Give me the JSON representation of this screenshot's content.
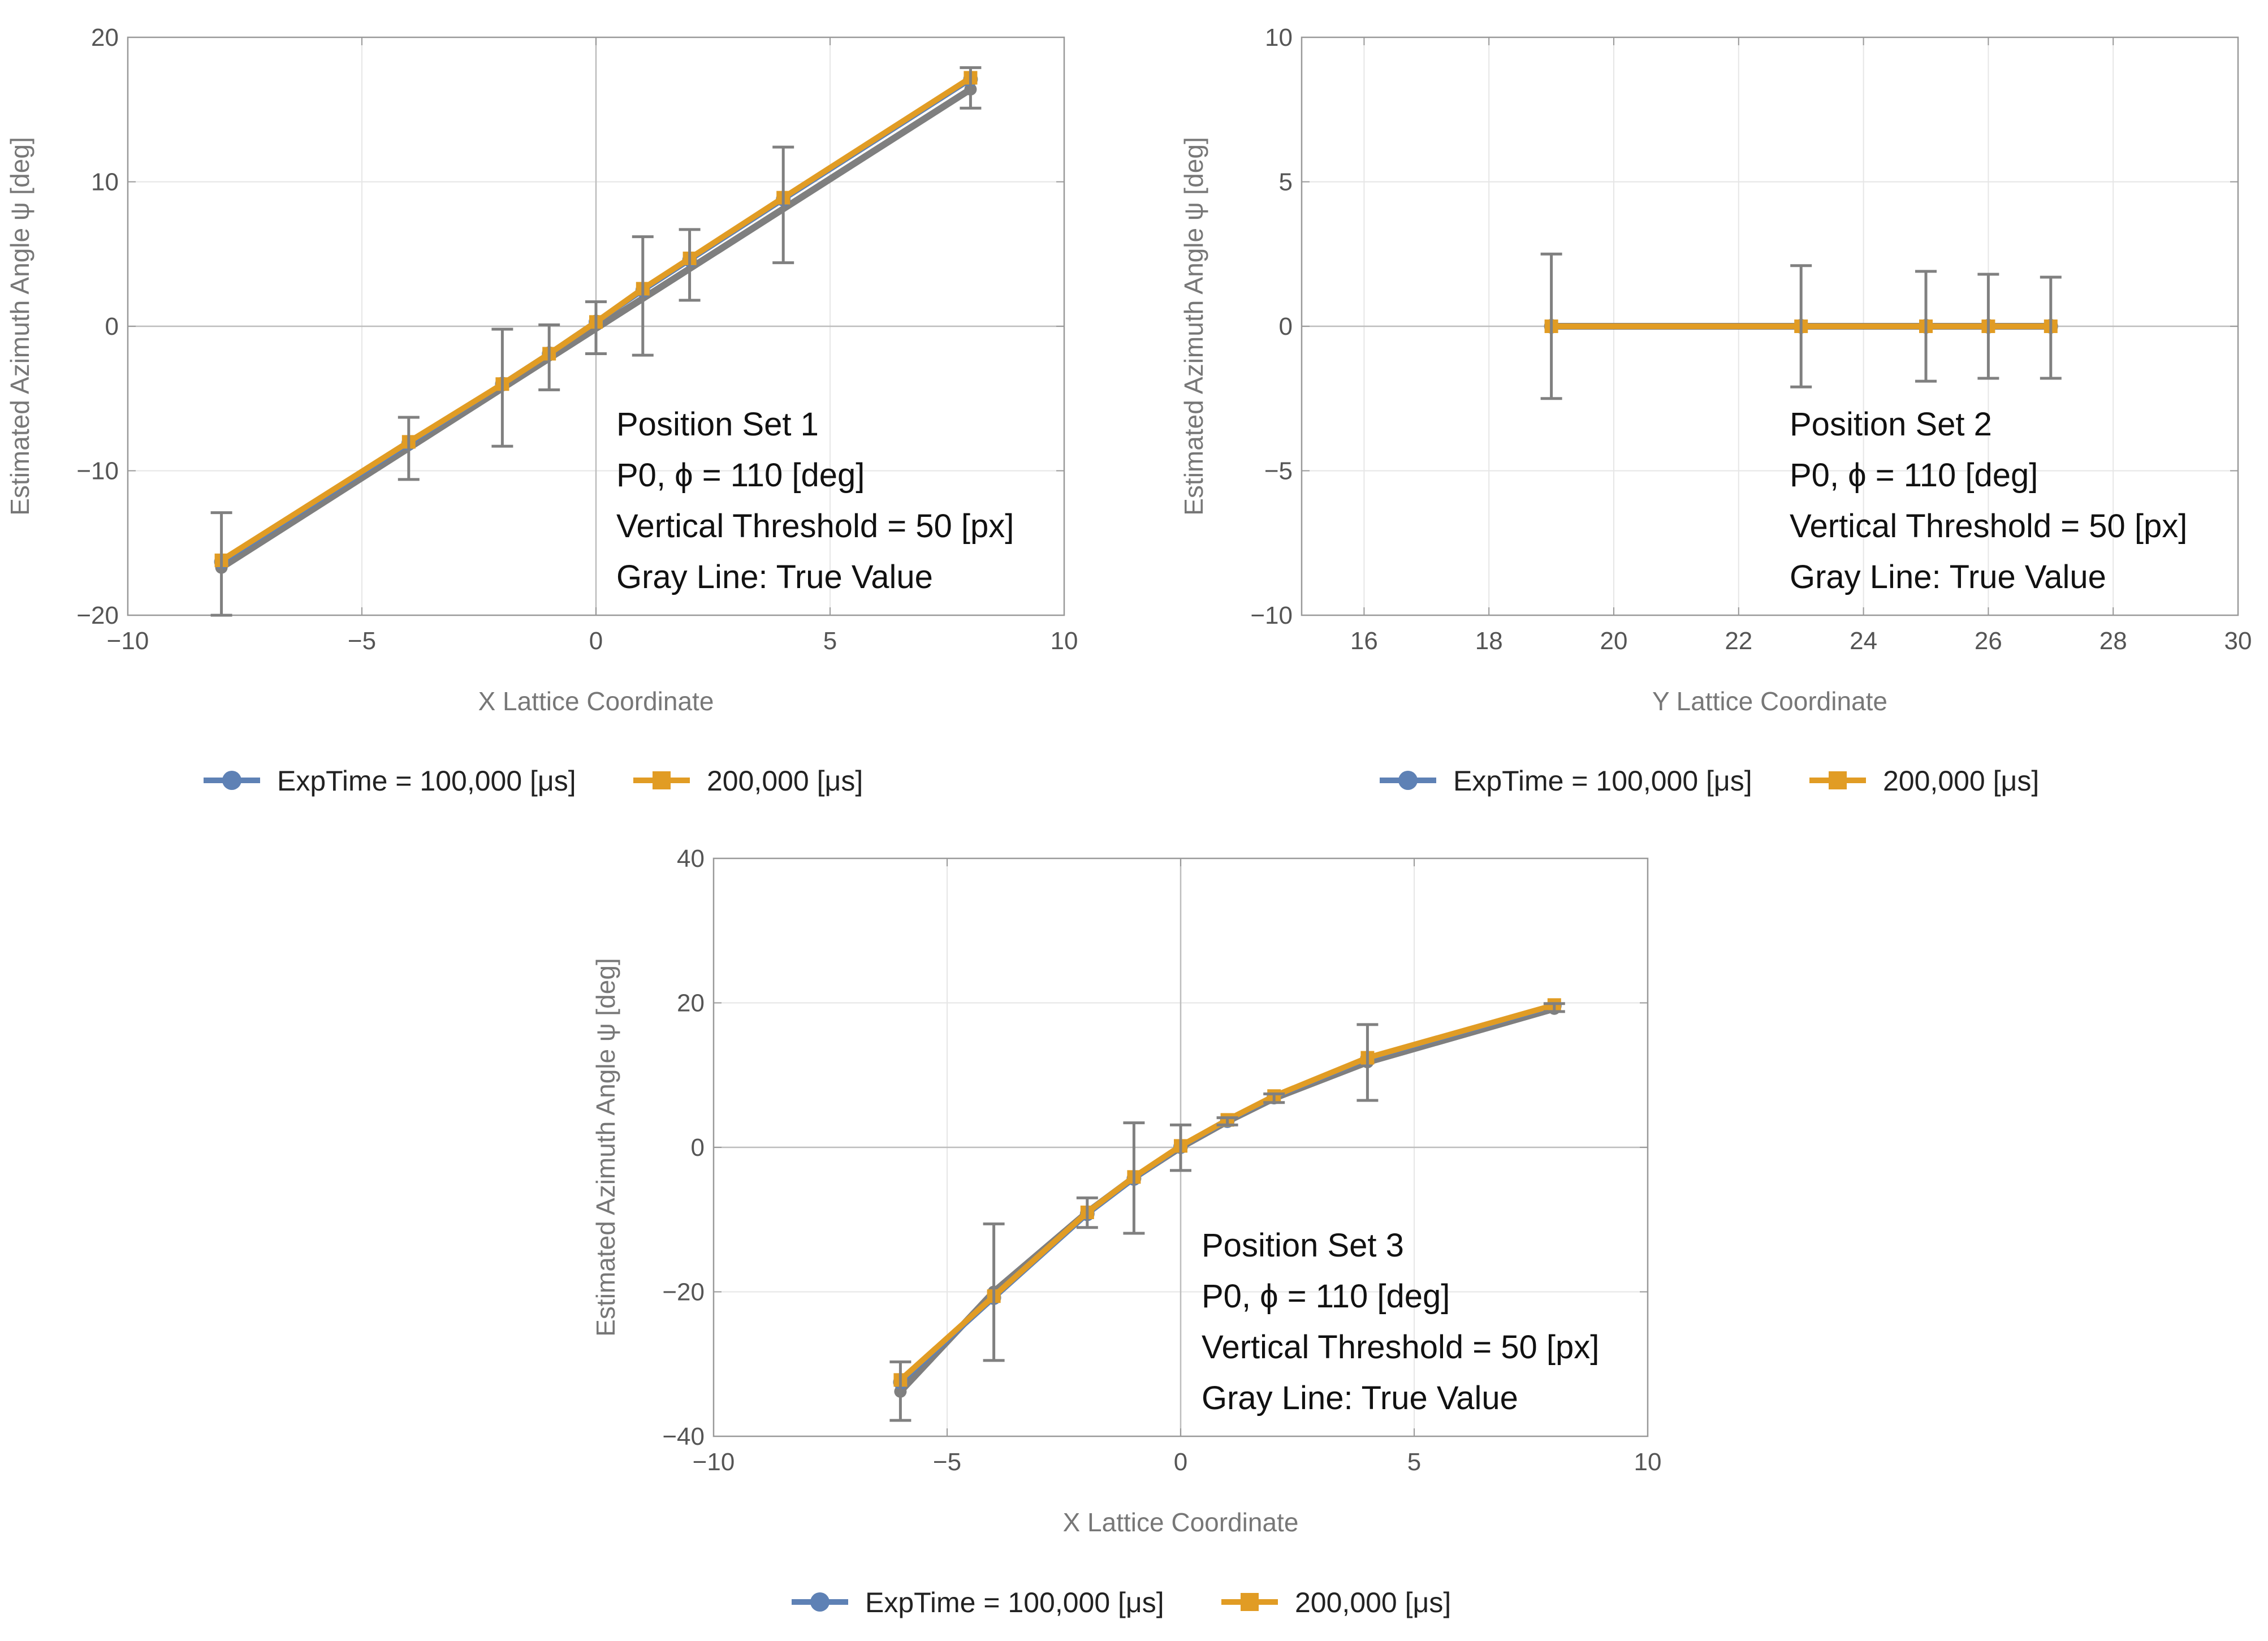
{
  "chart_data": [
    {
      "type": "line",
      "id": "panel1",
      "xlabel": "X Lattice Coordinate",
      "ylabel": "Estimated Azimuth Angle ψ [deg]",
      "xlim": [
        -10,
        10
      ],
      "ylim": [
        -20,
        20
      ],
      "xticks": [
        -10,
        -5,
        0,
        5,
        10
      ],
      "xtick_labels": [
        "−10",
        "−5",
        "0",
        "5",
        "10"
      ],
      "yticks": [
        -20,
        -10,
        0,
        10,
        20
      ],
      "ytick_labels": [
        "−20",
        "−10",
        "0",
        "10",
        "20"
      ],
      "grid": true,
      "annotation": [
        "Position Set 1",
        "P0, ϕ = 110 [deg]",
        "Vertical Threshold = 50 [px]",
        "Gray Line: True Value"
      ],
      "true_line": {
        "x": [
          -8,
          8
        ],
        "y": [
          -16.7,
          16.4
        ]
      },
      "series": [
        {
          "name": "ExpTime = 100,000 [μs]",
          "color": "#5E81B5",
          "marker": "circle",
          "x": [
            -8,
            -4,
            -2,
            -1,
            0,
            1,
            2,
            4,
            8
          ],
          "y": [
            -16.3,
            -8.1,
            -4.0,
            -1.9,
            0.3,
            2.5,
            4.6,
            8.8,
            17.1
          ]
        },
        {
          "name": "200,000 [μs]",
          "color": "#E19C24",
          "marker": "square",
          "x": [
            -8,
            -4,
            -2,
            -1,
            0,
            1,
            2,
            4,
            8
          ],
          "y": [
            -16.2,
            -8.0,
            -4.0,
            -1.9,
            0.3,
            2.6,
            4.7,
            8.9,
            17.2
          ]
        }
      ],
      "error_bars": {
        "x": [
          -8,
          -4,
          -2,
          -1,
          0,
          1,
          2,
          4,
          8
        ],
        "low": [
          -20,
          -10.6,
          -8.3,
          -4.4,
          -1.9,
          -2.0,
          1.8,
          4.4,
          15.1
        ],
        "high": [
          -12.9,
          -6.3,
          -0.2,
          0.1,
          1.7,
          6.2,
          6.7,
          12.4,
          17.9
        ]
      }
    },
    {
      "type": "line",
      "id": "panel2",
      "xlabel": "Y Lattice Coordinate",
      "ylabel": "Estimated Azimuth Angle ψ [deg]",
      "xlim": [
        15,
        30
      ],
      "ylim": [
        -10,
        10
      ],
      "xticks": [
        16,
        18,
        20,
        22,
        24,
        26,
        28,
        30
      ],
      "xtick_labels": [
        "16",
        "18",
        "20",
        "22",
        "24",
        "26",
        "28",
        "30"
      ],
      "yticks": [
        -10,
        -5,
        0,
        5,
        10
      ],
      "ytick_labels": [
        "−10",
        "−5",
        "0",
        "5",
        "10"
      ],
      "grid": true,
      "annotation": [
        "Position Set 2",
        "P0, ϕ = 110 [deg]",
        "Vertical Threshold = 50 [px]",
        "Gray Line: True Value"
      ],
      "true_line": {
        "x": [
          19,
          27
        ],
        "y": [
          0,
          0
        ]
      },
      "series": [
        {
          "name": "ExpTime = 100,000 [μs]",
          "color": "#5E81B5",
          "marker": "circle",
          "x": [
            19,
            23,
            25,
            26,
            27
          ],
          "y": [
            0,
            0,
            0,
            0,
            0
          ]
        },
        {
          "name": "200,000 [μs]",
          "color": "#E19C24",
          "marker": "square",
          "x": [
            19,
            23,
            25,
            26,
            27
          ],
          "y": [
            0,
            0,
            0,
            0,
            0
          ]
        }
      ],
      "error_bars": {
        "x": [
          19,
          23,
          25,
          26,
          27
        ],
        "low": [
          -2.5,
          -2.1,
          -1.9,
          -1.8,
          -1.8
        ],
        "high": [
          2.5,
          2.1,
          1.9,
          1.8,
          1.7
        ]
      }
    },
    {
      "type": "line",
      "id": "panel3",
      "xlabel": "X Lattice Coordinate",
      "ylabel": "Estimated Azimuth Angle ψ [deg]",
      "xlim": [
        -10,
        10
      ],
      "ylim": [
        -40,
        40
      ],
      "xticks": [
        -10,
        -5,
        0,
        5,
        10
      ],
      "xtick_labels": [
        "−10",
        "−5",
        "0",
        "5",
        "10"
      ],
      "yticks": [
        -40,
        -20,
        0,
        20,
        40
      ],
      "ytick_labels": [
        "−40",
        "−20",
        "0",
        "20",
        "40"
      ],
      "grid": true,
      "annotation": [
        "Position Set 3",
        "P0, ϕ = 110 [deg]",
        "Vertical Threshold = 50 [px]",
        "Gray Line: True Value"
      ],
      "true_line": {
        "x": [
          -6,
          -4,
          -2,
          -1,
          0,
          1,
          2,
          4,
          8
        ],
        "y": [
          -33.8,
          -20.0,
          -9.0,
          -4.2,
          0.0,
          3.6,
          6.8,
          11.8,
          19.2
        ]
      },
      "series": [
        {
          "name": "ExpTime = 100,000 [μs]",
          "color": "#5E81B5",
          "marker": "circle",
          "x": [
            -6,
            -4,
            -2,
            -1,
            0,
            1,
            2,
            4,
            8
          ],
          "y": [
            -32.5,
            -20.8,
            -9.2,
            -4.3,
            0.1,
            3.7,
            7.0,
            12.3,
            19.6
          ]
        },
        {
          "name": "200,000 [μs]",
          "color": "#E19C24",
          "marker": "square",
          "x": [
            -6,
            -4,
            -2,
            -1,
            0,
            1,
            2,
            4,
            8
          ],
          "y": [
            -32.2,
            -20.6,
            -9.0,
            -4.1,
            0.2,
            3.8,
            7.1,
            12.4,
            19.7
          ]
        }
      ],
      "error_bars": {
        "x": [
          -6,
          -4,
          -2,
          -1,
          0,
          1,
          2,
          4,
          8
        ],
        "low": [
          -37.8,
          -29.5,
          -11.1,
          -11.9,
          -3.2,
          3.1,
          6.2,
          6.5,
          18.8
        ],
        "high": [
          -29.7,
          -10.6,
          -7.0,
          3.4,
          3.1,
          4.1,
          7.4,
          17.0,
          19.9
        ]
      }
    }
  ],
  "legend": [
    {
      "label": "ExpTime = 100,000 [μs]",
      "color": "#5E81B5",
      "marker": "circle"
    },
    {
      "label": "200,000 [μs]",
      "color": "#E19C24",
      "marker": "square"
    }
  ],
  "colors": {
    "true_line": "#7F7F7F",
    "error_bar": "#808080",
    "grid": "#E6E6E6",
    "frame": "#999999"
  }
}
